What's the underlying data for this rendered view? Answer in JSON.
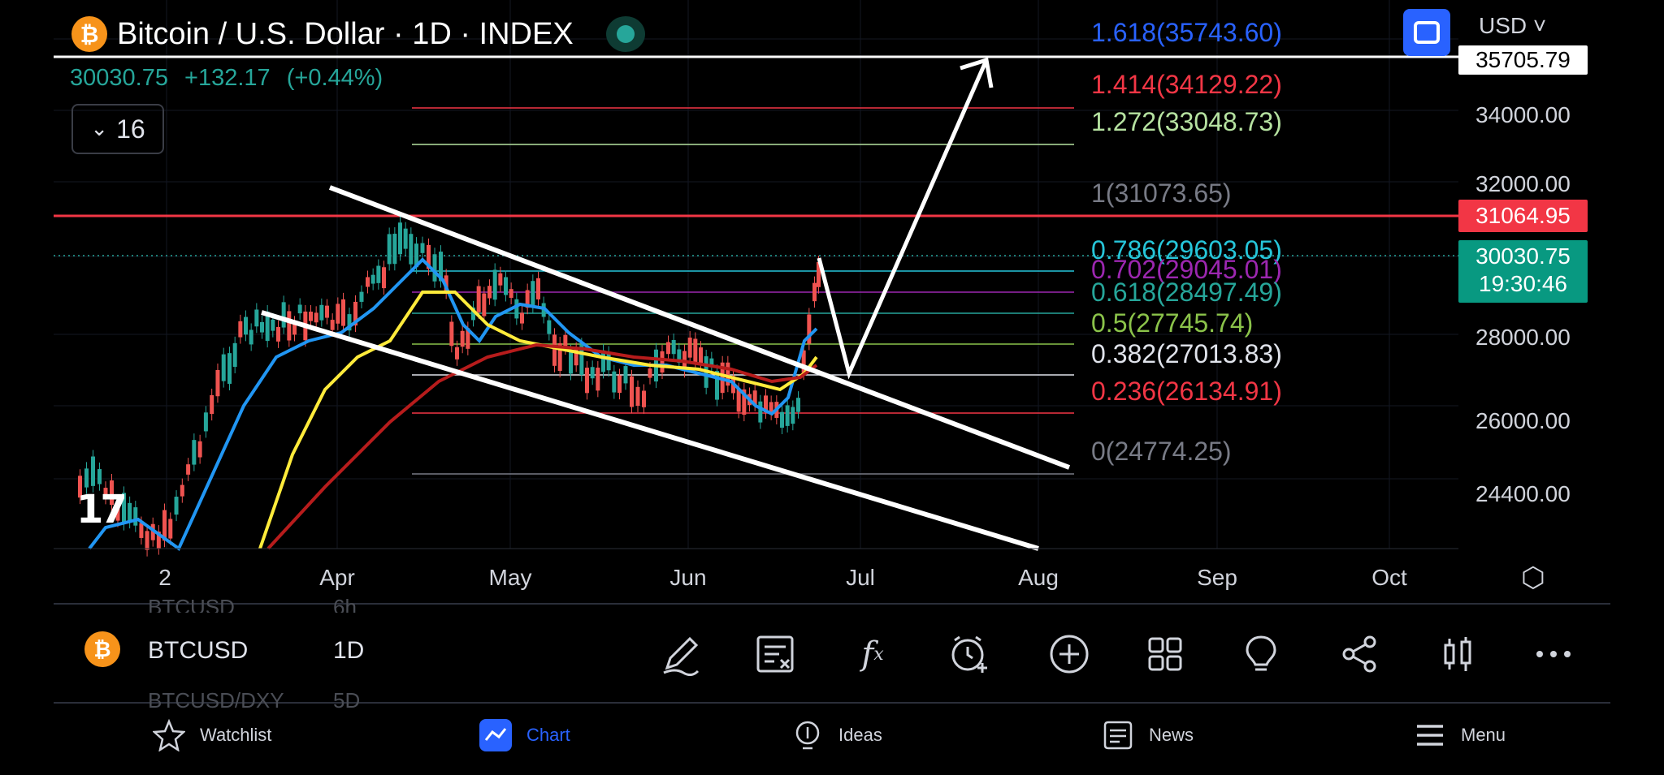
{
  "header": {
    "title": "Bitcoin / U.S. Dollar · 1D · INDEX",
    "coin_glyph": "₿",
    "last_price": "30030.75",
    "change": "+132.17",
    "change_pct": "(+0.44%)",
    "interval_count": "16"
  },
  "top_right": {
    "currency": "USD ˅"
  },
  "fib_levels": [
    {
      "label": "1.618(35743.60)",
      "color": "#2962ff"
    },
    {
      "label": "1.414(34129.22)",
      "color": "#f23645"
    },
    {
      "label": "1.272(33048.73)",
      "color": "#b6e2a1"
    },
    {
      "label": "1(31073.65)",
      "color": "#787b86"
    },
    {
      "label": "0.786(29603.05)",
      "color": "#26c6da"
    },
    {
      "label": "0.702(29045.01)",
      "color": "#9c27b0"
    },
    {
      "label": "0.618(28497.49)",
      "color": "#26a69a"
    },
    {
      "label": "0.5(27745.74)",
      "color": "#8bc34a"
    },
    {
      "label": "0.382(27013.83)",
      "color": "#e0e3eb"
    },
    {
      "label": "0.236(26134.91)",
      "color": "#f23645"
    },
    {
      "label": "0(24774.25)",
      "color": "#787b86"
    }
  ],
  "y_axis": [
    "34000.00",
    "32000.00",
    "28000.00",
    "26000.00",
    "24400.00"
  ],
  "price_tags": {
    "top": "35705.79",
    "red": "31064.95",
    "current": "30030.75",
    "countdown": "19:30:46"
  },
  "x_axis": [
    "2",
    "Apr",
    "May",
    "Jun",
    "Jul",
    "Aug",
    "Sep",
    "Oct"
  ],
  "symbol_bar": {
    "symbol": "BTCUSD",
    "interval": "1D",
    "ghost_above": "BTCUSD",
    "ghost_above_interval": "6h",
    "ghost_below": "BTCUSD/DXY",
    "ghost_below_interval": "5D"
  },
  "toolbar_icons": [
    "drawing-icon",
    "object-tree-icon",
    "indicators-icon",
    "add-alert-icon",
    "add-icon",
    "templates-icon",
    "ideas-icon",
    "share-icon",
    "chart-type-icon",
    "more-icon"
  ],
  "bottom_nav": [
    {
      "label": "Watchlist",
      "icon": "star-icon"
    },
    {
      "label": "Chart",
      "icon": "chart-icon"
    },
    {
      "label": "Ideas",
      "icon": "lightbulb-icon"
    },
    {
      "label": "News",
      "icon": "news-icon"
    },
    {
      "label": "Menu",
      "icon": "menu-icon"
    }
  ],
  "colors": {
    "up": "#26a69a",
    "down": "#ef5350",
    "accent": "#2962ff",
    "ema_blue": "#2196f3",
    "ema_yellow": "#ffeb3b",
    "ema_red": "#b71c1c"
  }
}
